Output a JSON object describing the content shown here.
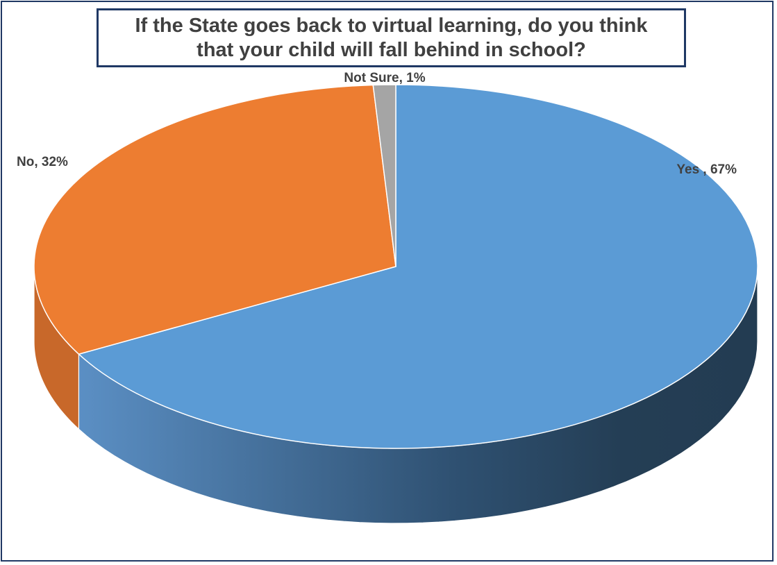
{
  "chart_data": {
    "type": "pie",
    "title": "If the State goes back to virtual learning, do you think\nthat your child will fall behind in school?",
    "slices": [
      {
        "label": "Yes",
        "value": 67,
        "display": "Yes , 67%",
        "color": "#5b9bd5",
        "side_color": "#2e4d6c"
      },
      {
        "label": "No",
        "value": 32,
        "display": "No, 32%",
        "color": "#ed7d31",
        "side_color": "#c8682a"
      },
      {
        "label": "Not Sure",
        "value": 1,
        "display": "Not Sure, 1%",
        "color": "#a5a5a5",
        "side_color": "#7f7f7f"
      }
    ],
    "style": "3d",
    "legend": "none"
  }
}
